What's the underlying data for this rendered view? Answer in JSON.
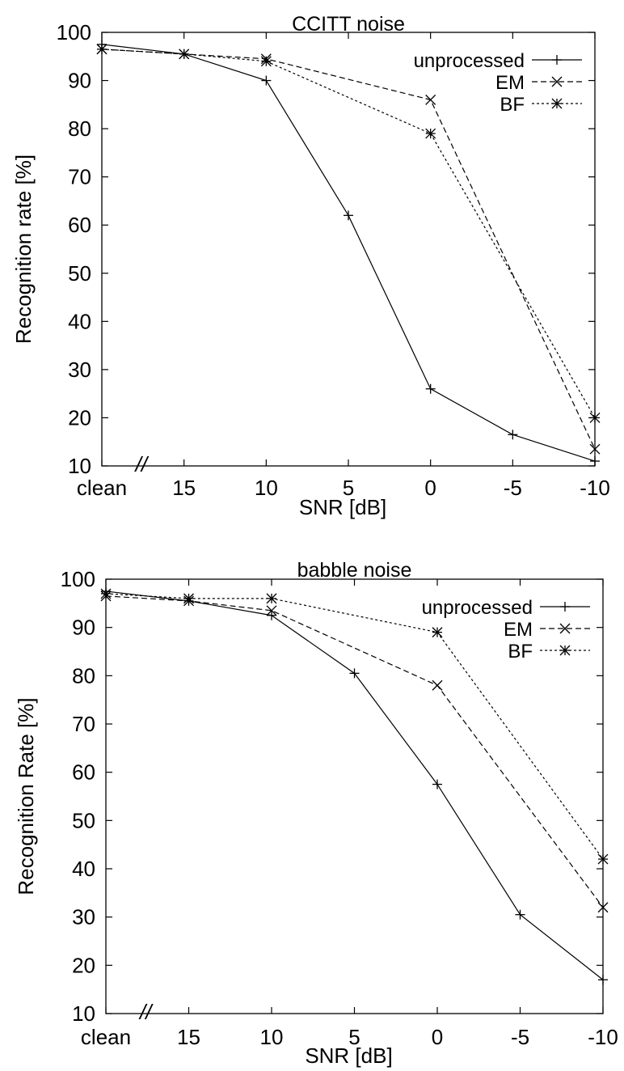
{
  "chart_data": [
    {
      "type": "line",
      "title": "CCITT noise",
      "xlabel": "SNR [dB]",
      "ylabel": "Recognition rate [%]",
      "ylim": [
        10,
        100
      ],
      "yticks": [
        "10",
        "20",
        "30",
        "40",
        "50",
        "60",
        "70",
        "80",
        "90",
        "100"
      ],
      "categories": [
        "clean",
        "15",
        "10",
        "5",
        "0",
        "-5",
        "-10"
      ],
      "axis_break_symbol": "//",
      "legend_position": "top-right",
      "grid": false,
      "series": [
        {
          "name": "unprocessed",
          "marker": "plus",
          "style": "solid",
          "values": [
            97.5,
            95.5,
            90.0,
            62.0,
            26.0,
            16.5,
            11.0
          ]
        },
        {
          "name": "EM",
          "marker": "x",
          "style": "dashed",
          "values": [
            96.5,
            95.5,
            94.5,
            null,
            86.0,
            null,
            13.5
          ]
        },
        {
          "name": "BF",
          "marker": "star",
          "style": "dotted",
          "values": [
            96.5,
            95.5,
            94.0,
            null,
            79.0,
            null,
            20.0
          ]
        }
      ]
    },
    {
      "type": "line",
      "title": "babble noise",
      "xlabel": "SNR [dB]",
      "ylabel": "Recognition Rate [%]",
      "ylim": [
        10,
        100
      ],
      "yticks": [
        "10",
        "20",
        "30",
        "40",
        "50",
        "60",
        "70",
        "80",
        "90",
        "100"
      ],
      "categories": [
        "clean",
        "15",
        "10",
        "5",
        "0",
        "-5",
        "-10"
      ],
      "axis_break_symbol": "//",
      "legend_position": "top-right",
      "grid": false,
      "series": [
        {
          "name": "unprocessed",
          "marker": "plus",
          "style": "solid",
          "values": [
            97.5,
            95.5,
            92.5,
            80.5,
            57.5,
            30.5,
            17.0
          ]
        },
        {
          "name": "EM",
          "marker": "x",
          "style": "dashed",
          "values": [
            96.5,
            95.5,
            93.5,
            null,
            78.0,
            null,
            32.0
          ]
        },
        {
          "name": "BF",
          "marker": "star",
          "style": "dotted",
          "values": [
            97.0,
            96.0,
            96.0,
            null,
            89.0,
            null,
            42.0
          ]
        }
      ]
    }
  ]
}
